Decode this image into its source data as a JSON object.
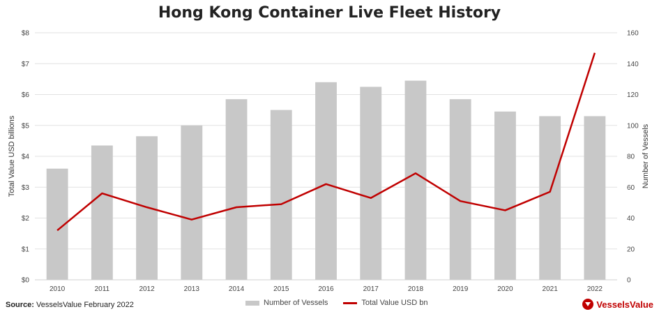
{
  "title": "Hong Kong Container Live Fleet History",
  "source": {
    "label": "Source:",
    "text": "VesselsValue February 2022"
  },
  "brand": {
    "name": "VesselsValue",
    "color": "#c00000"
  },
  "chart_data": {
    "type": "bar+line",
    "title": "Hong Kong Container Live Fleet History",
    "categories": [
      "2010",
      "2011",
      "2012",
      "2013",
      "2014",
      "2015",
      "2016",
      "2017",
      "2018",
      "2019",
      "2020",
      "2021",
      "2022"
    ],
    "series": [
      {
        "name": "Number of Vessels",
        "type": "bar",
        "axis": "right",
        "color": "#c8c8c8",
        "values": [
          72,
          87,
          93,
          100,
          117,
          110,
          128,
          125,
          129,
          117,
          109,
          106,
          106
        ]
      },
      {
        "name": "Total Value USD bn",
        "type": "line",
        "axis": "left",
        "color": "#c00000",
        "values": [
          1.6,
          2.8,
          2.35,
          1.95,
          2.35,
          2.45,
          3.1,
          2.65,
          3.45,
          2.55,
          2.25,
          2.85,
          7.35
        ]
      }
    ],
    "ylabel_left": "Total Value USD billions",
    "ylabel_right": "Number of Vessels",
    "ylim_left": [
      0,
      8
    ],
    "ylim_right": [
      0,
      160
    ],
    "left_ticks": [
      "$0",
      "$1",
      "$2",
      "$3",
      "$4",
      "$5",
      "$6",
      "$7",
      "$8"
    ],
    "right_ticks": [
      "0",
      "20",
      "40",
      "60",
      "80",
      "100",
      "120",
      "140",
      "160"
    ],
    "grid": true,
    "legend_position": "bottom"
  }
}
